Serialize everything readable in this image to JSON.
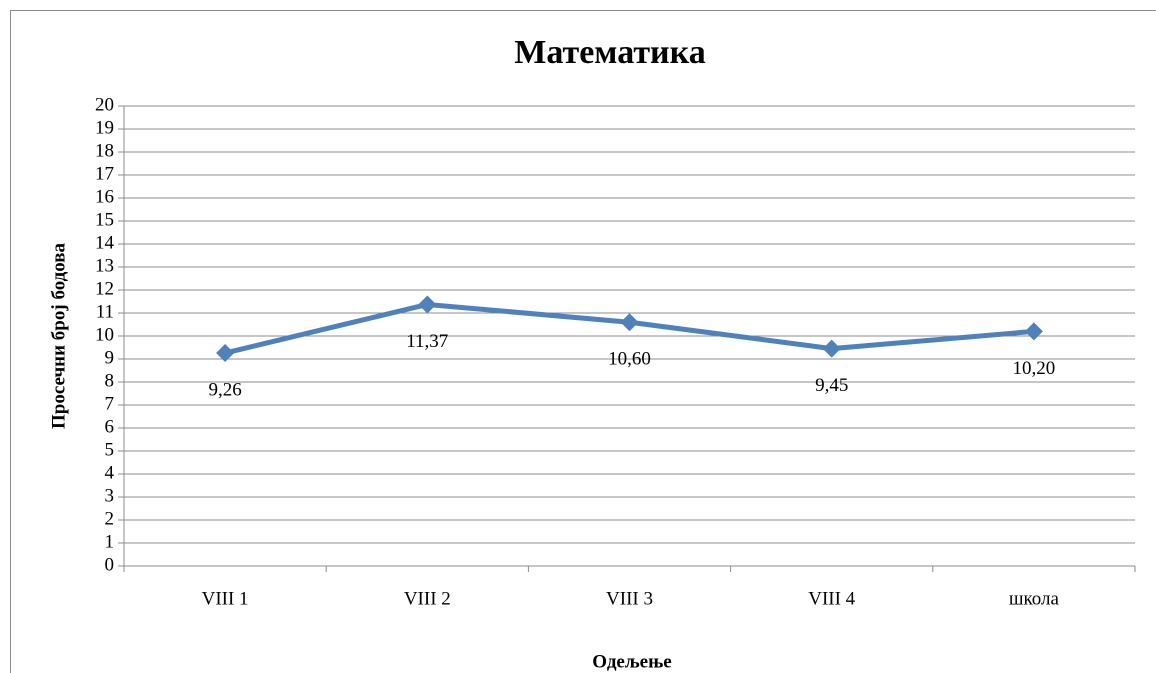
{
  "chart_data": {
    "type": "line",
    "title": "Математика",
    "x_label": "Одељење",
    "y_label": "Просечни број бодова",
    "categories": [
      "VIII 1",
      "VIII 2",
      "VIII 3",
      "VIII 4",
      "школа"
    ],
    "series": [
      {
        "name": "Математика",
        "color": "#4f81bd",
        "values": [
          9.26,
          11.37,
          10.6,
          9.45,
          10.2
        ],
        "value_labels": [
          "9,26",
          "11,37",
          "10,60",
          "9,45",
          "10,20"
        ]
      }
    ],
    "ylim": [
      0,
      20
    ],
    "yticks": [
      0,
      1,
      2,
      3,
      4,
      5,
      6,
      7,
      8,
      9,
      10,
      11,
      12,
      13,
      14,
      15,
      16,
      17,
      18,
      19,
      20
    ],
    "grid": true
  }
}
